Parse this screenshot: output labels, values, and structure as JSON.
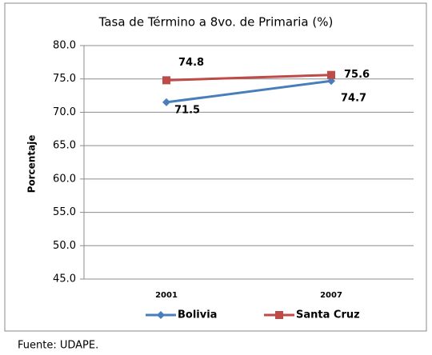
{
  "chart_data": {
    "type": "line",
    "title": "Tasa de Término a 8vo. de Primaria (%)",
    "y_label": "Porcentaje",
    "categories": [
      "2001",
      "2007"
    ],
    "series": [
      {
        "name": "Bolivia",
        "color": "#4a7ebb",
        "marker": "diamond",
        "values": [
          71.5,
          74.7
        ]
      },
      {
        "name": "Santa Cruz",
        "color": "#be4b48",
        "marker": "square",
        "values": [
          74.8,
          75.6
        ]
      }
    ],
    "ylim": [
      45,
      80
    ],
    "yticks": [
      {
        "value": 45,
        "label": "45.0"
      },
      {
        "value": 50,
        "label": "50.0"
      },
      {
        "value": 55,
        "label": "55.0"
      },
      {
        "value": 60,
        "label": "60.0"
      },
      {
        "value": 65,
        "label": "65.0"
      },
      {
        "value": 70,
        "label": "70.0"
      },
      {
        "value": 75,
        "label": "75.0"
      },
      {
        "value": 80,
        "label": "80.0"
      }
    ],
    "grid": true,
    "legend": "bottom",
    "source": "Fuente: UDAPE."
  }
}
